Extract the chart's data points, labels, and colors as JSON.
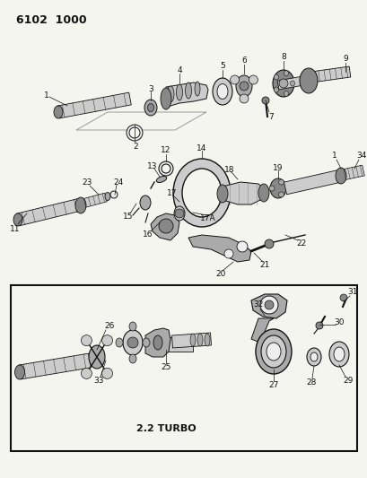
{
  "title": "6102  1000",
  "bg": "#f5f5f0",
  "fg": "#111111",
  "gray1": "#aaaaaa",
  "gray2": "#cccccc",
  "gray3": "#888888",
  "gray4": "#666666",
  "white": "#eeeeee",
  "fig_w": 4.1,
  "fig_h": 5.33,
  "dpi": 100
}
